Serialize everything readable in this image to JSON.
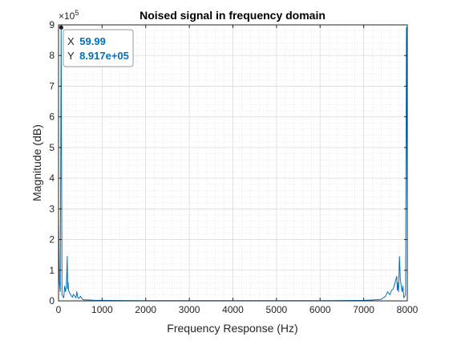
{
  "chart_data": {
    "type": "line",
    "title": "Noised signal in frequency domain",
    "xlabel": "Frequency Response (Hz)",
    "ylabel": "Magnitude (dB)",
    "y_exponent_label": "×10",
    "y_exponent_power": "5",
    "xlim": [
      0,
      8000
    ],
    "ylim": [
      0,
      900000
    ],
    "x_ticks": [
      0,
      1000,
      2000,
      3000,
      4000,
      5000,
      6000,
      7000,
      8000
    ],
    "x_tick_labels": [
      "0",
      "1000",
      "2000",
      "3000",
      "4000",
      "5000",
      "6000",
      "7000",
      "8000"
    ],
    "y_ticks": [
      0,
      100000,
      200000,
      300000,
      400000,
      500000,
      600000,
      700000,
      800000,
      900000
    ],
    "y_tick_labels": [
      "0",
      "1",
      "2",
      "3",
      "4",
      "5",
      "6",
      "7",
      "8",
      "9"
    ],
    "grid": true,
    "minor_grid": true,
    "line_color": "#0072BD",
    "series": [
      {
        "x": [
          0,
          20,
          40,
          59.99,
          80,
          100,
          120,
          140,
          160,
          180,
          200,
          210,
          220,
          230,
          240,
          260,
          280,
          300,
          320,
          340,
          360,
          380,
          400,
          420,
          440,
          460,
          480,
          500,
          550,
          600,
          700,
          800,
          1000,
          1500,
          2000,
          3000,
          4000,
          5000,
          6000,
          6500,
          7000,
          7200,
          7400,
          7500,
          7550,
          7600,
          7640,
          7680,
          7720,
          7760,
          7770,
          7780,
          7790,
          7800,
          7820,
          7840,
          7860,
          7880,
          7900,
          7920,
          7940,
          7960,
          7980,
          8000
        ],
        "y": [
          280000,
          60000,
          30000,
          891700,
          20000,
          15000,
          10000,
          48000,
          30000,
          50000,
          145000,
          40000,
          60000,
          35000,
          30000,
          25000,
          20000,
          15000,
          12000,
          22000,
          18000,
          14000,
          10000,
          30000,
          12000,
          8000,
          10000,
          15000,
          5000,
          3000,
          3000,
          2000,
          1500,
          1000,
          800,
          600,
          500,
          600,
          800,
          1000,
          1500,
          3000,
          5000,
          15000,
          30000,
          20000,
          35000,
          40000,
          60000,
          80000,
          35000,
          60000,
          40000,
          30000,
          145000,
          70000,
          50000,
          30000,
          48000,
          10000,
          15000,
          20000,
          891700,
          280000
        ]
      }
    ]
  },
  "datatip": {
    "x_label": "X",
    "x_value": "59.99",
    "y_label": "Y",
    "y_value": "8.917e+05",
    "x": 59.99,
    "y": 891700
  }
}
